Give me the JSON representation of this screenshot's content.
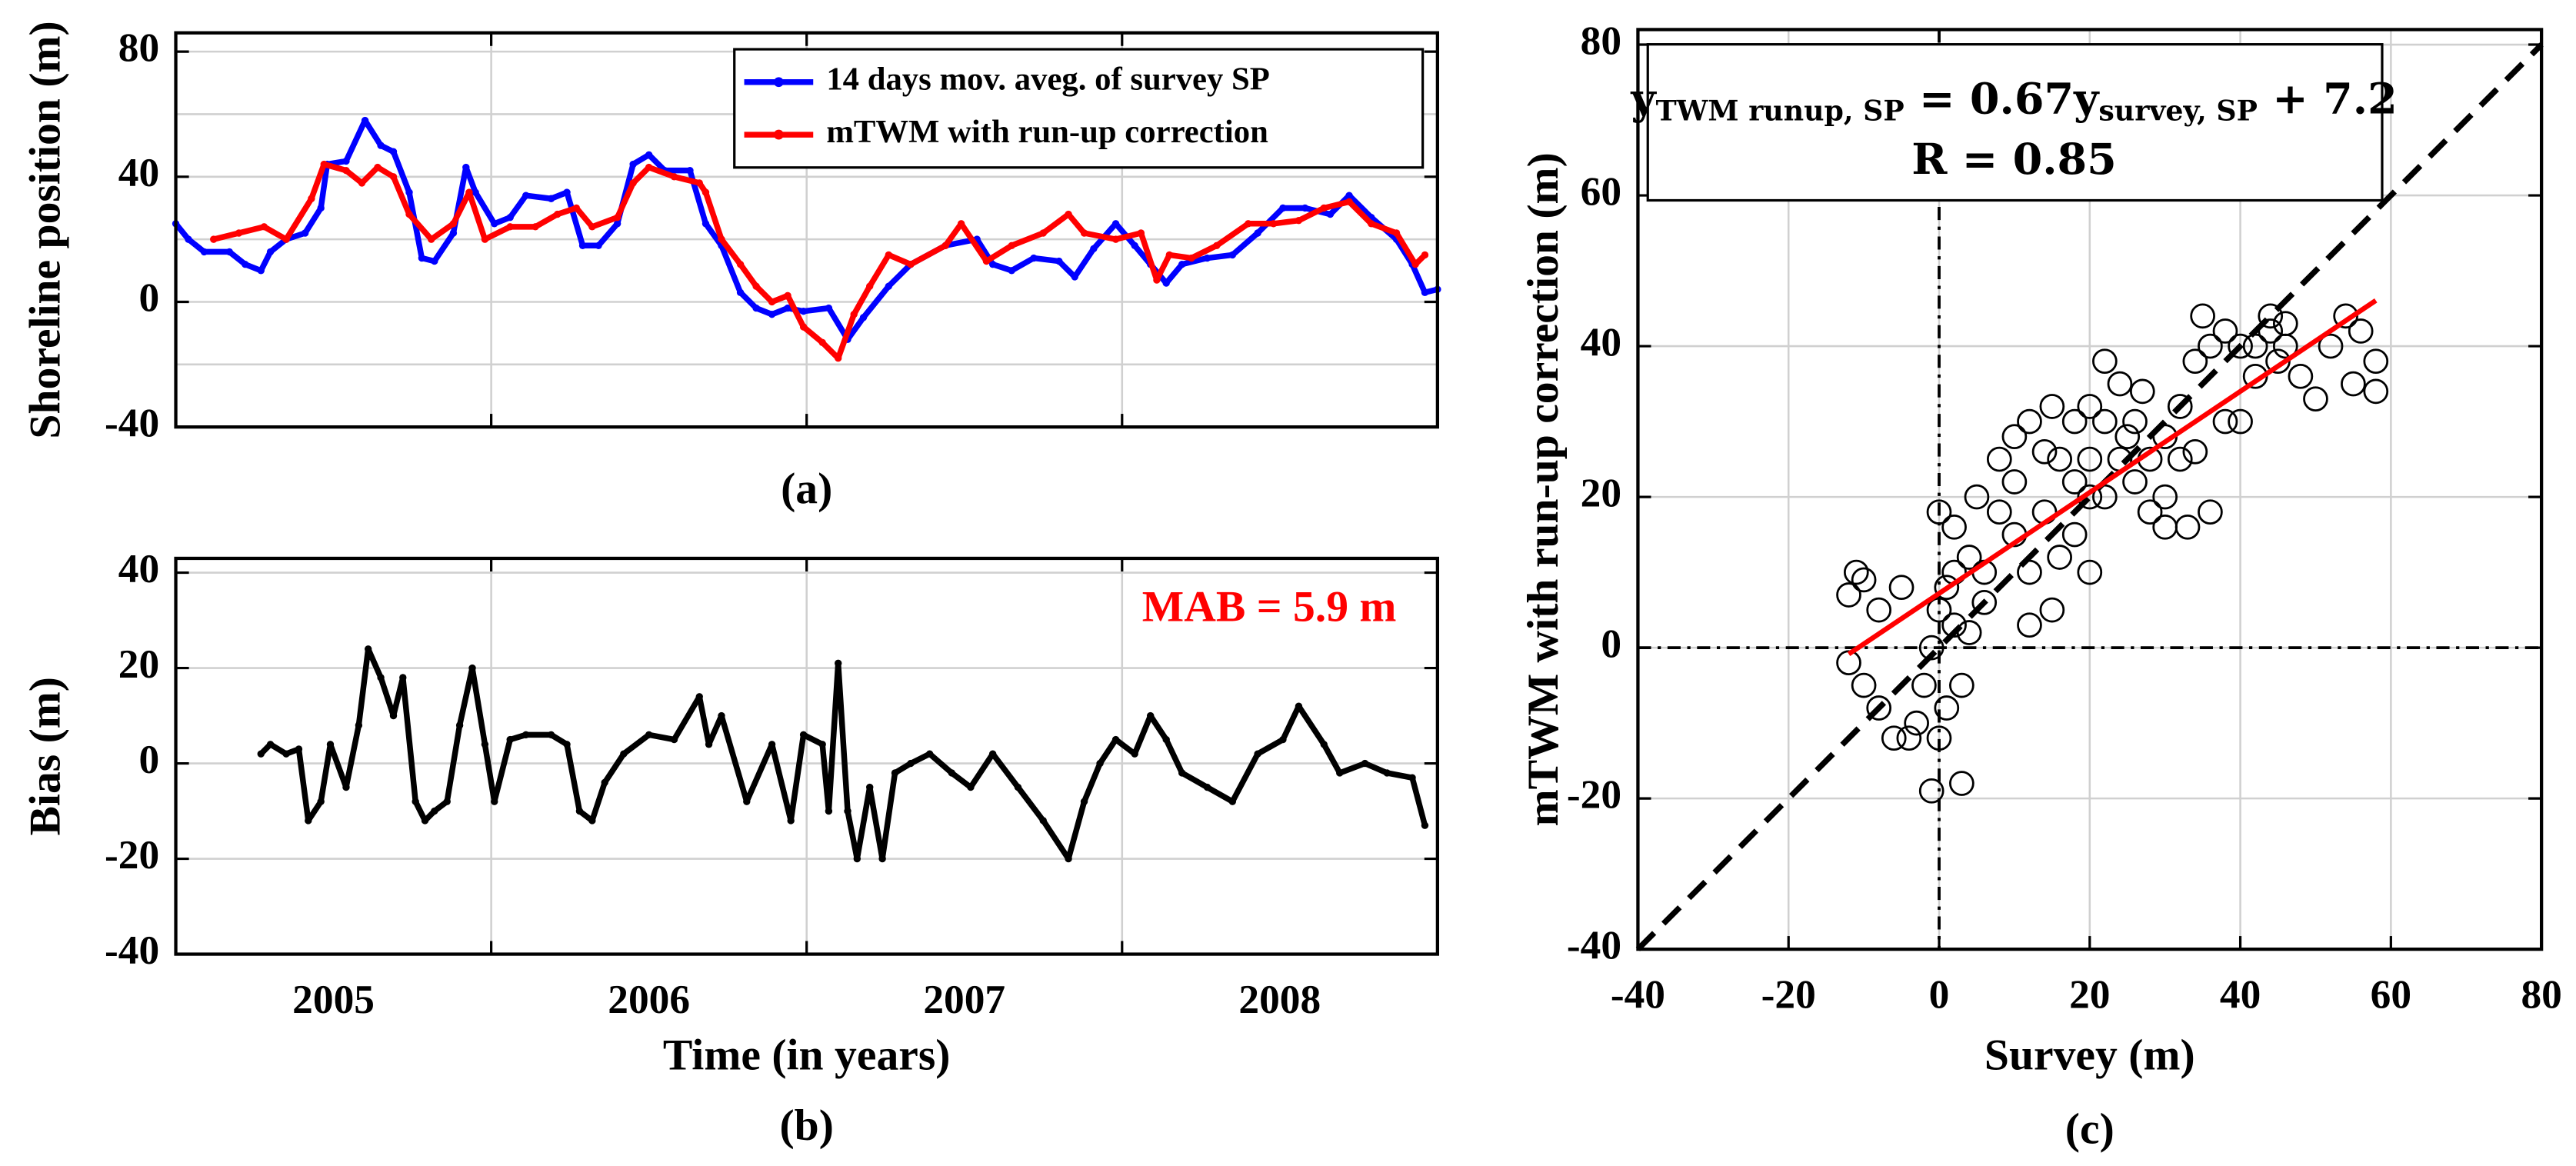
{
  "chart_data": [
    {
      "type": "line",
      "ylabel": "Shoreline position (m)",
      "caption": "(a)",
      "xlim": [
        2005,
        2009
      ],
      "xgrid": [
        2006,
        2007,
        2008
      ],
      "ylim": [
        -40,
        86
      ],
      "yticks": [
        -40,
        0,
        40,
        80
      ],
      "yminor": [
        -20,
        20,
        60
      ],
      "grid": true,
      "legend": "upper right",
      "series": [
        {
          "name": "14 days mov. aveg. of survey SP",
          "color": "#0000ff",
          "x": [
            2005.0,
            2005.04,
            2005.09,
            2005.17,
            2005.22,
            2005.27,
            2005.3,
            2005.35,
            2005.41,
            2005.46,
            2005.48,
            2005.54,
            2005.6,
            2005.65,
            2005.69,
            2005.74,
            2005.78,
            2005.82,
            2005.88,
            2005.92,
            2005.95,
            2006.01,
            2006.06,
            2006.11,
            2006.19,
            2006.24,
            2006.29,
            2006.34,
            2006.4,
            2006.45,
            2006.5,
            2006.55,
            2006.63,
            2006.68,
            2006.73,
            2006.79,
            2006.84,
            2006.89,
            2006.94,
            2006.99,
            2007.07,
            2007.13,
            2007.18,
            2007.26,
            2007.33,
            2007.44,
            2007.54,
            2007.59,
            2007.65,
            2007.72,
            2007.8,
            2007.85,
            2007.91,
            2007.98,
            2008.04,
            2008.09,
            2008.14,
            2008.19,
            2008.27,
            2008.35,
            2008.43,
            2008.51,
            2008.58,
            2008.66,
            2008.72,
            2008.79,
            2008.87,
            2008.92,
            2008.96,
            2009.0
          ],
          "values": [
            25,
            20,
            16,
            16,
            12,
            10,
            16,
            20,
            22,
            30,
            44,
            45,
            58,
            50,
            48,
            35,
            14,
            13,
            22,
            43,
            35,
            25,
            27,
            34,
            33,
            35,
            18,
            18,
            25,
            44,
            47,
            42,
            42,
            25,
            18,
            3,
            -2,
            -4,
            -2,
            -3,
            -2,
            -12,
            -5,
            5,
            12,
            18,
            20,
            12,
            10,
            14,
            13,
            8,
            17,
            25,
            18,
            12,
            6,
            12,
            14,
            15,
            22,
            30,
            30,
            28,
            34,
            27,
            20,
            12,
            3,
            4
          ]
        },
        {
          "name": "mTWM with run-up correction",
          "color": "#ff0000",
          "x": [
            2005.12,
            2005.2,
            2005.28,
            2005.35,
            2005.43,
            2005.47,
            2005.54,
            2005.59,
            2005.64,
            2005.69,
            2005.74,
            2005.81,
            2005.88,
            2005.93,
            2005.98,
            2006.06,
            2006.14,
            2006.21,
            2006.27,
            2006.32,
            2006.4,
            2006.45,
            2006.5,
            2006.58,
            2006.66,
            2006.68,
            2006.73,
            2006.79,
            2006.84,
            2006.89,
            2006.94,
            2006.99,
            2007.05,
            2007.1,
            2007.15,
            2007.2,
            2007.26,
            2007.33,
            2007.44,
            2007.49,
            2007.57,
            2007.65,
            2007.75,
            2007.83,
            2007.88,
            2007.98,
            2008.06,
            2008.11,
            2008.15,
            2008.22,
            2008.3,
            2008.4,
            2008.48,
            2008.56,
            2008.64,
            2008.72,
            2008.79,
            2008.87,
            2008.93,
            2008.96
          ],
          "values": [
            20,
            22,
            24,
            20,
            33,
            44,
            42,
            38,
            43,
            40,
            28,
            20,
            25,
            35,
            20,
            24,
            24,
            28,
            30,
            24,
            27,
            38,
            43,
            40,
            38,
            35,
            20,
            12,
            5,
            0,
            2,
            -8,
            -13,
            -18,
            -4,
            5,
            15,
            12,
            18,
            25,
            13,
            18,
            22,
            28,
            22,
            20,
            22,
            7,
            15,
            14,
            18,
            25,
            25,
            26,
            30,
            32,
            25,
            22,
            12,
            15
          ]
        }
      ]
    },
    {
      "type": "line",
      "ylabel": "Bias (m)",
      "xlabel": "Time (in years)",
      "caption": "(b)",
      "xlim": [
        2005,
        2009
      ],
      "xgrid": [
        2006,
        2007,
        2008
      ],
      "xticks": [
        {
          "value": 2005.5,
          "label": "2005"
        },
        {
          "value": 2006.5,
          "label": "2006"
        },
        {
          "value": 2007.5,
          "label": "2007"
        },
        {
          "value": 2008.5,
          "label": "2008"
        }
      ],
      "ylim": [
        -40,
        43
      ],
      "yticks": [
        -40,
        -20,
        0,
        20,
        40
      ],
      "grid": true,
      "annotation": {
        "text": "MAB = 5.9 m",
        "color": "#ff0000"
      },
      "series": [
        {
          "color": "#000000",
          "x": [
            2005.27,
            2005.3,
            2005.35,
            2005.39,
            2005.42,
            2005.46,
            2005.49,
            2005.54,
            2005.58,
            2005.61,
            2005.65,
            2005.69,
            2005.72,
            2005.76,
            2005.79,
            2005.82,
            2005.86,
            2005.9,
            2005.94,
            2005.98,
            2006.01,
            2006.06,
            2006.11,
            2006.19,
            2006.24,
            2006.28,
            2006.32,
            2006.36,
            2006.42,
            2006.5,
            2006.58,
            2006.66,
            2006.69,
            2006.73,
            2006.81,
            2006.89,
            2006.95,
            2006.99,
            2007.05,
            2007.07,
            2007.1,
            2007.13,
            2007.16,
            2007.2,
            2007.24,
            2007.28,
            2007.33,
            2007.39,
            2007.46,
            2007.52,
            2007.59,
            2007.67,
            2007.75,
            2007.83,
            2007.88,
            2007.93,
            2007.98,
            2008.04,
            2008.09,
            2008.14,
            2008.19,
            2008.27,
            2008.35,
            2008.43,
            2008.51,
            2008.56,
            2008.64,
            2008.69,
            2008.77,
            2008.84,
            2008.92,
            2008.96
          ],
          "values": [
            2,
            4,
            2,
            3,
            -12,
            -8,
            4,
            -5,
            8,
            24,
            18,
            10,
            18,
            -8,
            -12,
            -10,
            -8,
            8,
            20,
            4,
            -8,
            5,
            6,
            6,
            4,
            -10,
            -12,
            -4,
            2,
            6,
            5,
            14,
            4,
            10,
            -8,
            4,
            -12,
            6,
            4,
            -10,
            21,
            -10,
            -20,
            -5,
            -20,
            -2,
            0,
            2,
            -2,
            -5,
            2,
            -5,
            -12,
            -20,
            -8,
            0,
            5,
            2,
            10,
            5,
            -2,
            -5,
            -8,
            2,
            5,
            12,
            4,
            -2,
            0,
            -2,
            -3,
            -13
          ]
        }
      ]
    },
    {
      "type": "scatter",
      "xlabel": "Survey (m)",
      "ylabel": "mTWM with run-up correction (m)",
      "caption": "(c)",
      "xlim": [
        -40,
        80
      ],
      "xticks": [
        -40,
        -20,
        0,
        20,
        40,
        60,
        80
      ],
      "ylim": [
        -40,
        82
      ],
      "yticks": [
        -40,
        -20,
        0,
        20,
        40,
        60,
        80
      ],
      "grid": true,
      "identity_line": true,
      "zero_lines": true,
      "fit": {
        "slope": 0.67,
        "intercept": 7.2,
        "range": [
          -12,
          58
        ],
        "color": "#ff0000"
      },
      "equation": {
        "lhs": "y",
        "lhs_sub": "TWM runup, SP",
        "mid": " = 0.67y",
        "mid_sub": "survey, SP",
        "rhs": " + 7.2",
        "r": "R = 0.85"
      },
      "color": "#000000",
      "x": [
        -12,
        -11,
        -10,
        -12,
        -10,
        -8,
        -6,
        -4,
        -3,
        -2,
        -1,
        0,
        1,
        2,
        3,
        1,
        0,
        -1,
        3,
        0,
        2,
        4,
        6,
        5,
        8,
        8,
        10,
        12,
        10,
        14,
        12,
        15,
        16,
        18,
        20,
        20,
        22,
        20,
        24,
        25,
        26,
        28,
        30,
        30,
        32,
        34,
        35,
        36,
        38,
        40,
        42,
        44,
        45,
        46,
        48,
        50,
        52,
        54,
        56,
        58,
        58,
        55,
        36,
        33,
        30,
        22,
        18,
        16,
        14,
        24,
        28,
        26,
        10,
        6,
        4,
        2,
        -5,
        -8,
        40,
        42,
        44,
        38,
        46,
        27,
        20,
        12,
        18,
        15,
        22,
        32,
        34
      ],
      "values": [
        7,
        10,
        9,
        -2,
        -5,
        -8,
        -12,
        -12,
        -10,
        -5,
        0,
        5,
        8,
        3,
        -5,
        -8,
        -12,
        -19,
        -18,
        18,
        16,
        12,
        10,
        20,
        18,
        25,
        28,
        30,
        22,
        18,
        10,
        5,
        12,
        15,
        20,
        25,
        30,
        32,
        35,
        28,
        22,
        18,
        20,
        28,
        32,
        38,
        44,
        40,
        42,
        40,
        36,
        42,
        38,
        43,
        36,
        33,
        40,
        44,
        42,
        38,
        34,
        35,
        18,
        16,
        16,
        20,
        22,
        25,
        26,
        25,
        25,
        30,
        15,
        6,
        2,
        10,
        8,
        5,
        30,
        40,
        44,
        30,
        40,
        34,
        10,
        3,
        30,
        32,
        38,
        25,
        26
      ]
    }
  ]
}
